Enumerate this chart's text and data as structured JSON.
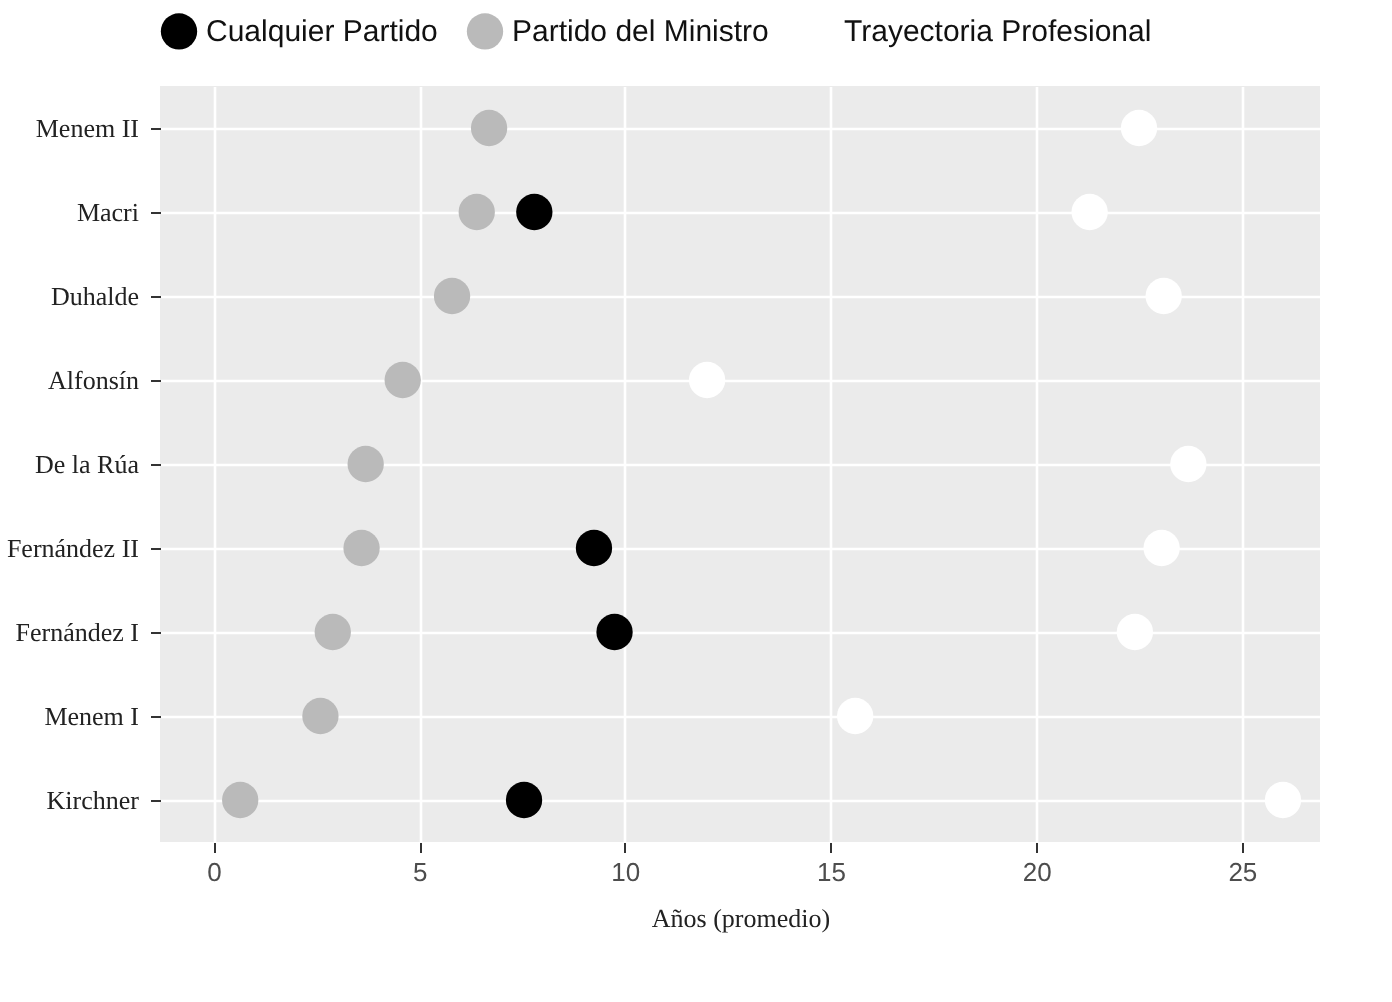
{
  "chart_data": {
    "type": "scatter",
    "xlabel": "Años (promedio)",
    "categories": [
      "Menem II",
      "Macri",
      "Duhalde",
      "Alfonsín",
      "De la Rúa",
      "Fernández II",
      "Fernández I",
      "Menem I",
      "Kirchner"
    ],
    "series": [
      {
        "name": "Cualquier Partido",
        "color": "#000000",
        "values": [
          null,
          7.8,
          null,
          null,
          null,
          9.25,
          9.75,
          null,
          7.55
        ]
      },
      {
        "name": "Partido del Ministro",
        "color": "#bababa",
        "values": [
          6.7,
          6.4,
          5.8,
          4.6,
          3.7,
          3.6,
          2.9,
          2.6,
          0.65
        ]
      },
      {
        "name": "Trayectoria Profesional",
        "color": "#ffffff",
        "values": [
          22.5,
          21.3,
          23.1,
          12.0,
          23.7,
          23.05,
          22.4,
          15.6,
          26.0
        ]
      }
    ],
    "orientation": "horizontal",
    "xlim": [
      -1.3,
      26.9
    ],
    "xticks": [
      0,
      5,
      10,
      15,
      20,
      25
    ],
    "grid": true,
    "legend": "top",
    "marker": "circle"
  }
}
